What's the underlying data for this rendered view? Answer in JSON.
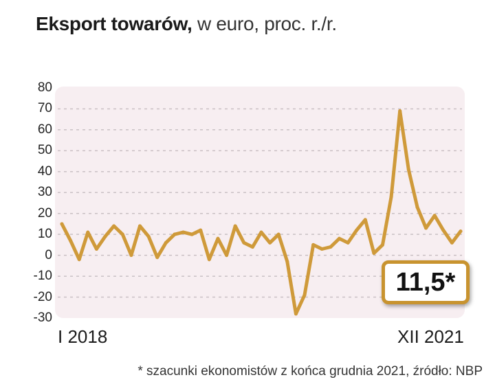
{
  "title": {
    "bold": "Eksport towarów,",
    "light": " w euro, proc. r./r."
  },
  "callout": "11,5*",
  "footnote": "* szacunki ekonomistów z końca grudnia 2021, źródło: NBP",
  "colors": {
    "line": "#cf9a3a",
    "panel": "#f7eef1",
    "grid": "#c9c0c4",
    "callout_border": "#c8932f"
  },
  "chart_data": {
    "type": "line",
    "title": "Eksport towarów, w euro, proc. r./r.",
    "ylim": [
      -30,
      80
    ],
    "yticks": [
      80,
      70,
      60,
      50,
      40,
      30,
      20,
      10,
      0,
      -10,
      -20,
      -30
    ],
    "x_start_label": "I 2018",
    "x_end_label": "XII 2021",
    "grid": true,
    "series": [
      {
        "values": [
          15,
          7,
          -2,
          11,
          3,
          9,
          14,
          10,
          0,
          14,
          9,
          -1,
          6,
          10,
          11,
          10,
          12,
          -2,
          8,
          0,
          14,
          6,
          4,
          11,
          6,
          10,
          -3,
          -28,
          -19,
          5,
          3,
          4,
          8,
          6,
          12,
          17,
          1,
          5,
          28,
          69,
          41,
          23,
          13,
          19,
          12,
          6,
          11.5
        ]
      }
    ]
  }
}
